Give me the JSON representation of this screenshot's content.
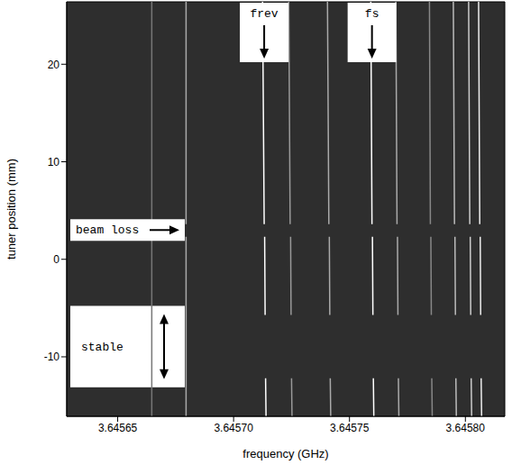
{
  "chart_data": {
    "type": "line",
    "x_label": "frequency (GHz)",
    "y_label": "tuner position (mm)",
    "xlim": [
      3.645628,
      3.645817
    ],
    "ylim": [
      -16.1,
      26.4
    ],
    "xticks": [
      3.64565,
      {
        "value": 3.6457,
        "label": "3.64570"
      },
      3.64575,
      {
        "value": 3.6458,
        "label": "3.64580"
      }
    ],
    "yticks": [
      -10,
      0,
      10,
      20
    ],
    "series": [
      {
        "color": "#777777",
        "x": [
          3.6456647,
          3.6456647
        ],
        "y": [
          26.4,
          -16.1
        ]
      },
      {
        "color": "#aaaaaa",
        "x": [
          3.6456795,
          3.6456795,
          3.6456795,
          3.6456795,
          3.6456795
        ],
        "y": [
          26.4,
          3.6,
          null,
          2.3,
          -16.1
        ]
      },
      {
        "color": "#ffffff",
        "x": [
          3.6457125,
          3.6457132,
          3.6457132,
          3.6457134,
          3.6457136,
          3.6457136,
          3.6457138,
          3.645714
        ],
        "y": [
          26.4,
          3.6,
          null,
          2.3,
          -5.7,
          null,
          -12.2,
          -16.1
        ]
      },
      {
        "color": "#999999",
        "x": [
          3.6457238,
          3.6457244,
          3.6457244,
          3.6457246,
          3.6457248,
          3.6457248,
          3.645725,
          3.6457252
        ],
        "y": [
          26.4,
          3.6,
          null,
          2.3,
          -5.7,
          null,
          -12.2,
          -16.1
        ]
      },
      {
        "color": "#aaaaaa",
        "x": [
          3.6457405,
          3.6457411,
          3.6457411,
          3.6457413,
          3.6457415,
          3.6457415,
          3.6457417,
          3.6457419
        ],
        "y": [
          26.4,
          3.6,
          null,
          2.3,
          -5.7,
          null,
          -12.2,
          -16.1
        ]
      },
      {
        "color": "#ffffff",
        "x": [
          3.6457592,
          3.6457597,
          3.6457597,
          3.6457599,
          3.6457601,
          3.6457601,
          3.6457603,
          3.6457605
        ],
        "y": [
          26.4,
          3.6,
          null,
          2.3,
          -5.7,
          null,
          -12.2,
          -16.1
        ]
      },
      {
        "color": "#aaaaaa",
        "x": [
          3.64577,
          3.6457705,
          3.6457705,
          3.6457707,
          3.6457709,
          3.6457709,
          3.6457711,
          3.6457713
        ],
        "y": [
          26.4,
          3.6,
          null,
          2.3,
          -5.7,
          null,
          -12.2,
          -16.1
        ]
      },
      {
        "color": "#888888",
        "x": [
          3.6457845,
          3.6457849,
          3.6457849,
          3.6457851,
          3.6457853,
          3.6457853,
          3.6457855,
          3.6457857
        ],
        "y": [
          26.4,
          3.6,
          null,
          2.3,
          -5.7,
          null,
          -12.2,
          -16.1
        ]
      },
      {
        "color": "#bbbbbb",
        "x": [
          3.6457948,
          3.6457953,
          3.6457953,
          3.6457955,
          3.6457957,
          3.6457957,
          3.6457959,
          3.6457961
        ],
        "y": [
          26.4,
          3.6,
          null,
          2.3,
          -5.7,
          null,
          -12.2,
          -16.1
        ]
      },
      {
        "color": "#cccccc",
        "x": [
          3.6458014,
          3.6458019,
          3.6458019,
          3.6458021,
          3.6458023,
          3.6458023,
          3.6458025,
          3.6458027
        ],
        "y": [
          26.4,
          3.6,
          null,
          2.3,
          -5.7,
          null,
          -12.2,
          -16.1
        ]
      },
      {
        "color": "#eeeeee",
        "x": [
          3.6458057,
          3.6458062,
          3.6458062,
          3.6458064,
          3.6458066,
          3.6458066,
          3.6458068,
          3.645807
        ],
        "y": [
          26.4,
          3.6,
          null,
          2.3,
          -5.7,
          null,
          -12.2,
          -16.1
        ]
      }
    ],
    "annotations": [
      {
        "text": "frev",
        "x": 3.6457132
      },
      {
        "text": "fs",
        "x": 3.6457597
      },
      {
        "text": "beam loss",
        "y": 3
      },
      {
        "text": "stable",
        "y_range": [
          -12.2,
          -5.7
        ]
      }
    ]
  }
}
